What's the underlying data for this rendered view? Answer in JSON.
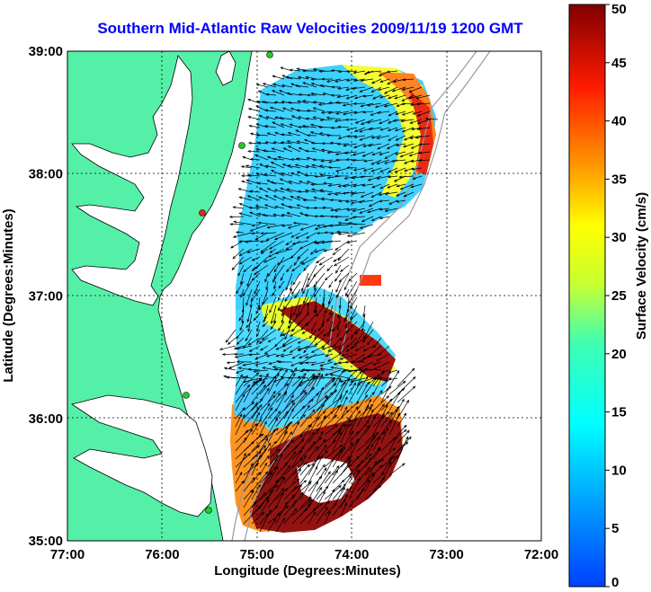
{
  "title": "Southern Mid-Atlantic Raw Velocities 2009/11/19 1200 GMT",
  "xlabel": "Longitude (Degrees:Minutes)",
  "ylabel": "Latitude (Degrees:Minutes)",
  "x_ticks": [
    "77:00",
    "76:00",
    "75:00",
    "74:00",
    "73:00",
    "72:00"
  ],
  "y_ticks": [
    "39:00",
    "38:00",
    "37:00",
    "36:00",
    "35:00"
  ],
  "colorbar": {
    "label": "Surface Velocity (cm/s)",
    "ticks": [
      "0",
      "5",
      "10",
      "15",
      "20",
      "25",
      "30",
      "35",
      "40",
      "45",
      "50"
    ],
    "range": [
      0,
      50
    ],
    "colormap": "jet"
  },
  "colors": {
    "land": "#55f0a8",
    "water": "#ffffff",
    "title": "#0000ff",
    "isobath": "#9a9a9a",
    "vectors": "#000000",
    "station_green": "#22cc22",
    "station_red": "#ee2222"
  },
  "map": {
    "lon_range": [
      -77,
      -72
    ],
    "lat_range": [
      35,
      39
    ],
    "grid": true
  }
}
